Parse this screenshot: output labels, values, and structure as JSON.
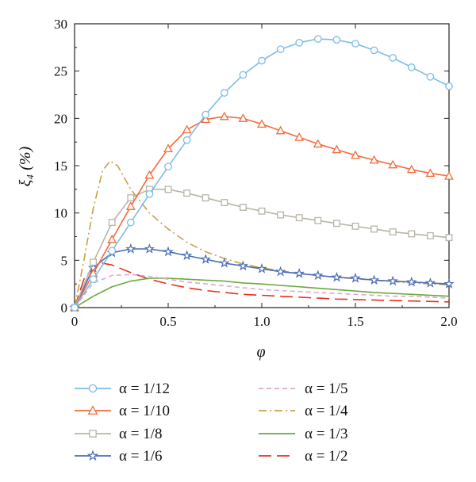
{
  "chart_data": {
    "type": "line",
    "xlabel": "φ",
    "ylabel": "ξ₄ (%)",
    "xlim": [
      0,
      2.0
    ],
    "ylim": [
      0,
      30
    ],
    "x_ticks": [
      "0",
      "0.5",
      "1.0",
      "1.5",
      "2.0"
    ],
    "x_tick_values": [
      0,
      0.5,
      1.0,
      1.5,
      2.0
    ],
    "y_ticks": [
      "0",
      "5",
      "10",
      "15",
      "20",
      "25",
      "30"
    ],
    "y_tick_values": [
      0,
      5,
      10,
      15,
      20,
      25,
      30
    ],
    "grid": false,
    "legend_position": "bottom",
    "series": [
      {
        "name": "α = 1/12",
        "color": "#7cbde6",
        "marker": "circle",
        "dash": "solid",
        "points": [
          [
            0,
            0
          ],
          [
            0.1,
            3.0
          ],
          [
            0.2,
            6.0
          ],
          [
            0.3,
            9.0
          ],
          [
            0.4,
            12.0
          ],
          [
            0.5,
            14.9
          ],
          [
            0.6,
            17.7
          ],
          [
            0.7,
            20.4
          ],
          [
            0.8,
            22.7
          ],
          [
            0.9,
            24.6
          ],
          [
            1.0,
            26.1
          ],
          [
            1.1,
            27.3
          ],
          [
            1.2,
            28.0
          ],
          [
            1.3,
            28.4
          ],
          [
            1.4,
            28.3
          ],
          [
            1.5,
            27.9
          ],
          [
            1.6,
            27.2
          ],
          [
            1.7,
            26.4
          ],
          [
            1.8,
            25.4
          ],
          [
            1.9,
            24.4
          ],
          [
            2.0,
            23.4
          ]
        ]
      },
      {
        "name": "α = 1/10",
        "color": "#f26b3a",
        "marker": "triangle",
        "dash": "solid",
        "points": [
          [
            0,
            0
          ],
          [
            0.1,
            3.6
          ],
          [
            0.2,
            7.2
          ],
          [
            0.3,
            10.7
          ],
          [
            0.4,
            14.0
          ],
          [
            0.5,
            16.8
          ],
          [
            0.6,
            18.8
          ],
          [
            0.7,
            19.9
          ],
          [
            0.8,
            20.2
          ],
          [
            0.9,
            20.0
          ],
          [
            1.0,
            19.4
          ],
          [
            1.1,
            18.7
          ],
          [
            1.2,
            18.0
          ],
          [
            1.3,
            17.3
          ],
          [
            1.4,
            16.7
          ],
          [
            1.5,
            16.1
          ],
          [
            1.6,
            15.6
          ],
          [
            1.7,
            15.1
          ],
          [
            1.8,
            14.6
          ],
          [
            1.9,
            14.2
          ],
          [
            2.0,
            13.9
          ]
        ]
      },
      {
        "name": "α = 1/8",
        "color": "#b8b4a8",
        "marker": "square",
        "dash": "solid",
        "points": [
          [
            0,
            0
          ],
          [
            0.1,
            4.8
          ],
          [
            0.2,
            9.0
          ],
          [
            0.3,
            11.6
          ],
          [
            0.4,
            12.5
          ],
          [
            0.5,
            12.5
          ],
          [
            0.6,
            12.1
          ],
          [
            0.7,
            11.6
          ],
          [
            0.8,
            11.1
          ],
          [
            0.9,
            10.6
          ],
          [
            1.0,
            10.2
          ],
          [
            1.1,
            9.8
          ],
          [
            1.2,
            9.5
          ],
          [
            1.3,
            9.2
          ],
          [
            1.4,
            8.9
          ],
          [
            1.5,
            8.6
          ],
          [
            1.6,
            8.3
          ],
          [
            1.7,
            8.0
          ],
          [
            1.8,
            7.8
          ],
          [
            1.9,
            7.6
          ],
          [
            2.0,
            7.4
          ]
        ]
      },
      {
        "name": "α = 1/6",
        "color": "#4a6db3",
        "marker": "star",
        "dash": "solid",
        "points": [
          [
            0,
            0
          ],
          [
            0.1,
            4.2
          ],
          [
            0.2,
            5.8
          ],
          [
            0.3,
            6.2
          ],
          [
            0.4,
            6.2
          ],
          [
            0.5,
            5.9
          ],
          [
            0.6,
            5.5
          ],
          [
            0.7,
            5.1
          ],
          [
            0.8,
            4.7
          ],
          [
            0.9,
            4.4
          ],
          [
            1.0,
            4.1
          ],
          [
            1.1,
            3.8
          ],
          [
            1.2,
            3.6
          ],
          [
            1.3,
            3.4
          ],
          [
            1.4,
            3.2
          ],
          [
            1.5,
            3.1
          ],
          [
            1.6,
            2.9
          ],
          [
            1.7,
            2.8
          ],
          [
            1.8,
            2.7
          ],
          [
            1.9,
            2.6
          ],
          [
            2.0,
            2.5
          ]
        ]
      },
      {
        "name": "α = 1/5",
        "color": "#dba9d3",
        "marker": "none",
        "dash": "6,4",
        "points": [
          [
            0,
            0
          ],
          [
            0.1,
            2.6
          ],
          [
            0.2,
            3.4
          ],
          [
            0.3,
            3.5
          ],
          [
            0.4,
            3.3
          ],
          [
            0.5,
            3.0
          ],
          [
            0.6,
            2.7
          ],
          [
            0.7,
            2.5
          ],
          [
            0.8,
            2.3
          ],
          [
            0.9,
            2.1
          ],
          [
            1.0,
            1.9
          ],
          [
            1.1,
            1.8
          ],
          [
            1.2,
            1.7
          ],
          [
            1.3,
            1.6
          ],
          [
            1.4,
            1.5
          ],
          [
            1.5,
            1.4
          ],
          [
            1.6,
            1.3
          ],
          [
            1.7,
            1.2
          ],
          [
            1.8,
            1.2
          ],
          [
            1.9,
            1.1
          ],
          [
            2.0,
            1.0
          ]
        ]
      },
      {
        "name": "α = 1/4",
        "color": "#c9a04a",
        "marker": "none",
        "dash": "10,4,2,4",
        "points": [
          [
            0,
            0
          ],
          [
            0.05,
            5.0
          ],
          [
            0.1,
            10.5
          ],
          [
            0.15,
            14.5
          ],
          [
            0.19,
            15.5
          ],
          [
            0.23,
            15.0
          ],
          [
            0.3,
            12.5
          ],
          [
            0.4,
            10.0
          ],
          [
            0.5,
            8.3
          ],
          [
            0.6,
            6.9
          ],
          [
            0.7,
            5.9
          ],
          [
            0.8,
            5.2
          ],
          [
            0.9,
            4.6
          ],
          [
            1.0,
            4.2
          ],
          [
            1.2,
            3.6
          ],
          [
            1.4,
            3.2
          ],
          [
            1.6,
            2.9
          ],
          [
            1.8,
            2.6
          ],
          [
            2.0,
            2.4
          ]
        ]
      },
      {
        "name": "α = 1/3",
        "color": "#6aaa3c",
        "marker": "none",
        "dash": "solid",
        "points": [
          [
            0,
            0
          ],
          [
            0.1,
            1.2
          ],
          [
            0.2,
            2.2
          ],
          [
            0.3,
            2.8
          ],
          [
            0.4,
            3.1
          ],
          [
            0.5,
            3.1
          ],
          [
            0.6,
            3.0
          ],
          [
            0.7,
            2.9
          ],
          [
            0.8,
            2.8
          ],
          [
            0.9,
            2.6
          ],
          [
            1.0,
            2.5
          ],
          [
            1.2,
            2.2
          ],
          [
            1.4,
            1.9
          ],
          [
            1.6,
            1.6
          ],
          [
            1.8,
            1.4
          ],
          [
            2.0,
            1.2
          ]
        ]
      },
      {
        "name": "α = 1/2",
        "color": "#e8301c",
        "marker": "none",
        "dash": "16,7",
        "points": [
          [
            0,
            0
          ],
          [
            0.05,
            3.0
          ],
          [
            0.1,
            4.3
          ],
          [
            0.15,
            4.7
          ],
          [
            0.2,
            4.5
          ],
          [
            0.3,
            3.7
          ],
          [
            0.4,
            3.0
          ],
          [
            0.5,
            2.5
          ],
          [
            0.6,
            2.1
          ],
          [
            0.7,
            1.8
          ],
          [
            0.8,
            1.6
          ],
          [
            0.9,
            1.4
          ],
          [
            1.0,
            1.3
          ],
          [
            1.2,
            1.1
          ],
          [
            1.4,
            0.9
          ],
          [
            1.6,
            0.8
          ],
          [
            1.8,
            0.7
          ],
          [
            2.0,
            0.6
          ]
        ]
      }
    ]
  }
}
